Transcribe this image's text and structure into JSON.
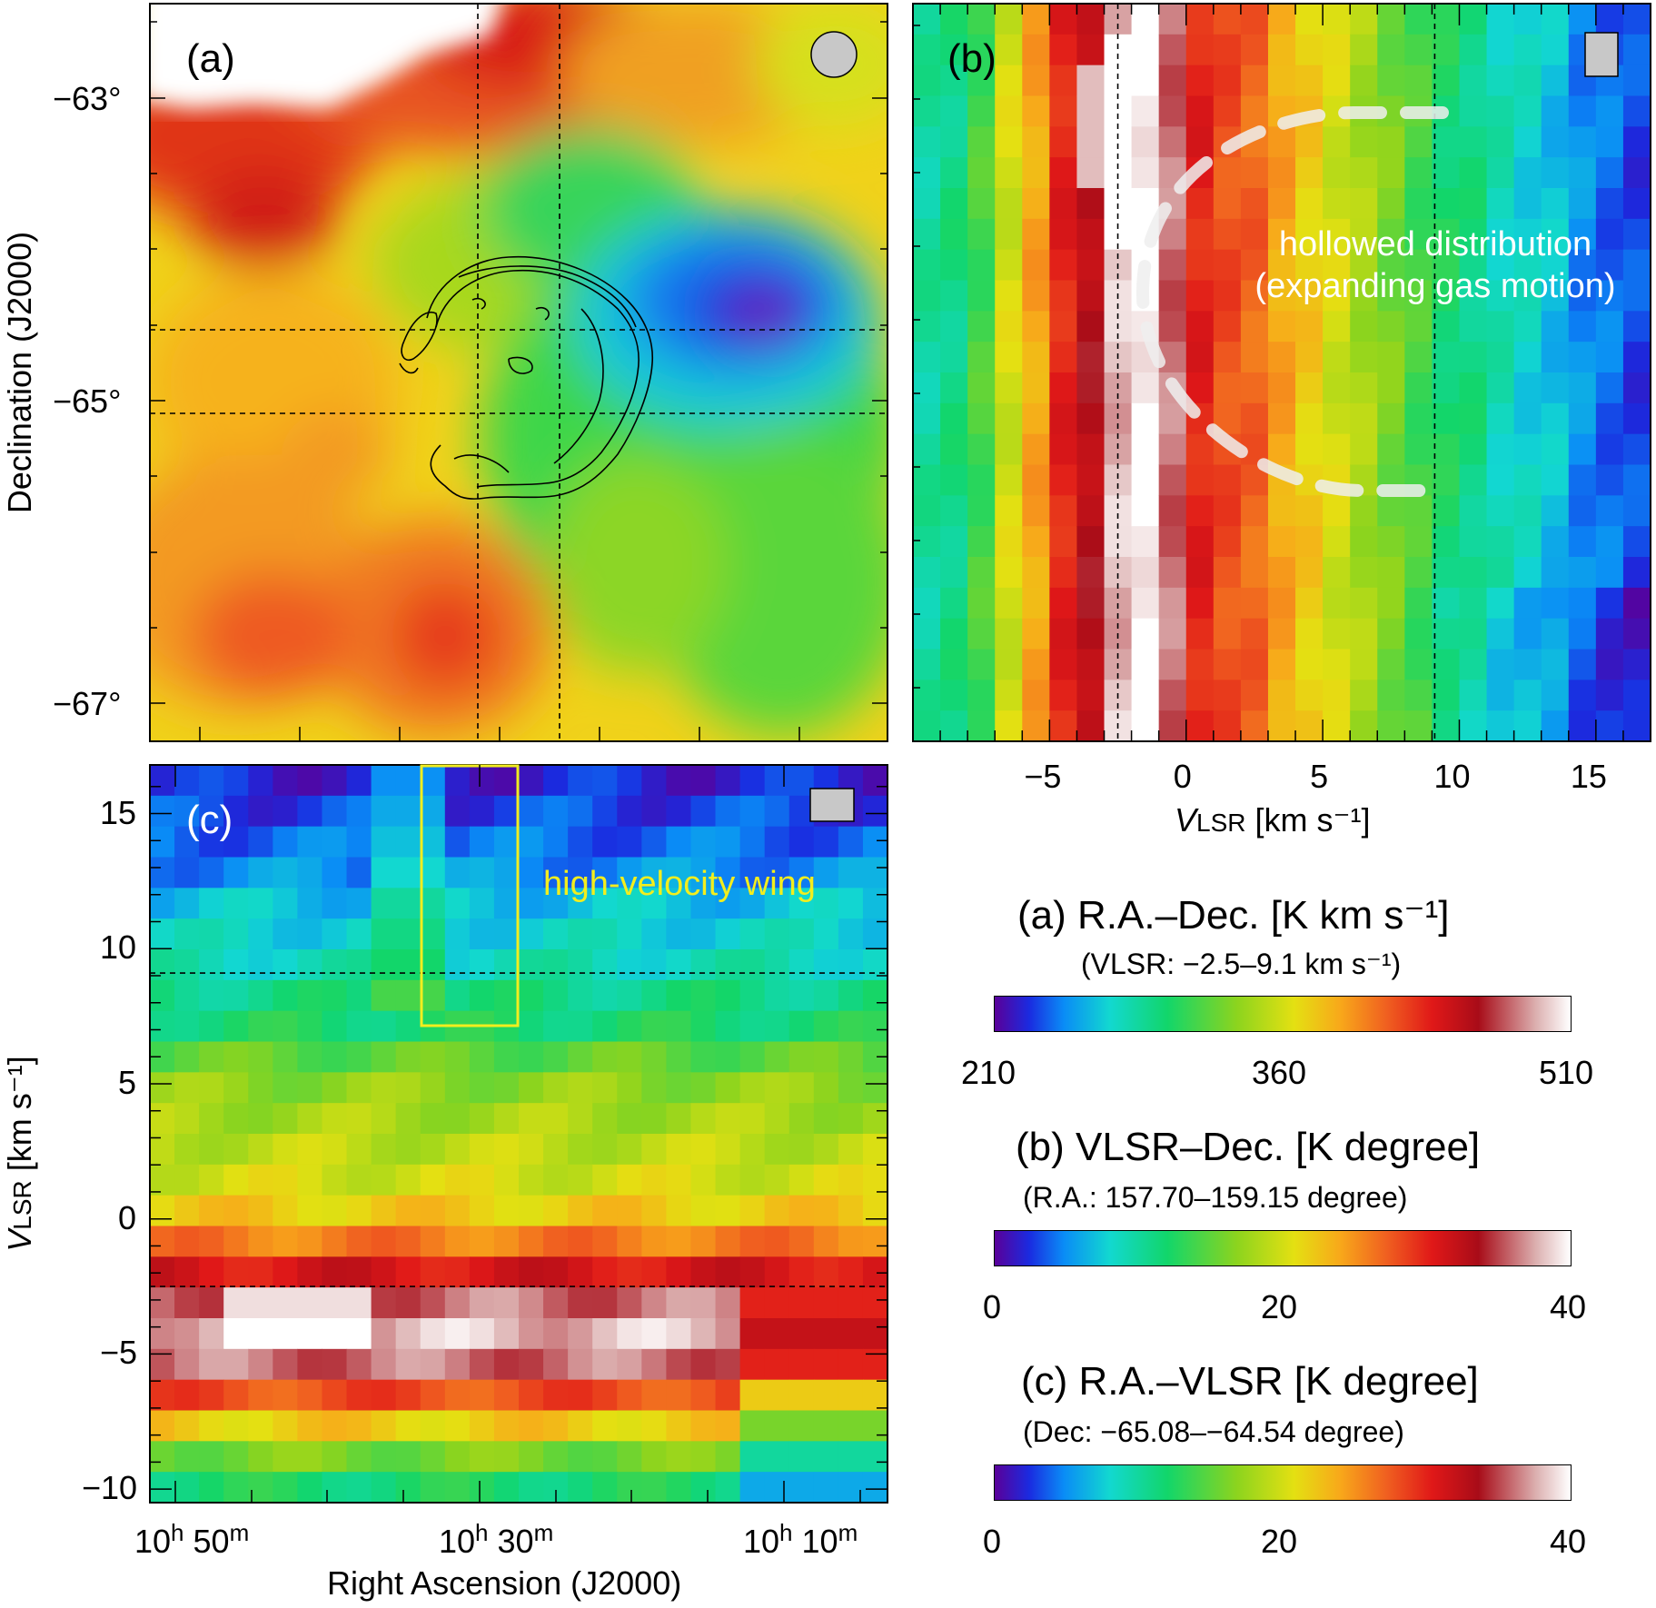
{
  "panels": {
    "a": {
      "label": "(a)"
    },
    "b": {
      "label": "(b)",
      "annotation_line1": "hollowed distribution",
      "annotation_line2": "(expanding gas motion)"
    },
    "c": {
      "label": "(c)",
      "annotation": "high-velocity wing"
    }
  },
  "axes": {
    "a_y_ticks": [
      "−63°",
      "−65°",
      "−67°"
    ],
    "a_y_title": "Declination (J2000)",
    "b_x_ticks": [
      "−5",
      "0",
      "5",
      "10",
      "15"
    ],
    "b_x_title_main": "V",
    "b_x_title_sub": "LSR",
    "b_x_title_rest": " [km s⁻¹]",
    "c_y_ticks": [
      "15",
      "10",
      "5",
      "0",
      "−5",
      "−10"
    ],
    "c_y_title_main": "V",
    "c_y_title_sub": "LSR",
    "c_y_title_rest": " [km s⁻¹]",
    "c_x_ticks": [
      {
        "h": "10",
        "m": "50"
      },
      {
        "h": "10",
        "m": "30"
      },
      {
        "h": "10",
        "m": "10"
      }
    ],
    "c_x_title": "Right Ascension (J2000)"
  },
  "colorbars": [
    {
      "title": "(a) R.A.–Dec. [K km s⁻¹]",
      "subtitle": "(VLSR: −2.5–9.1 km s⁻¹)",
      "ticks": [
        "210",
        "360",
        "510"
      ]
    },
    {
      "title": "(b) VLSR–Dec. [K degree]",
      "subtitle": "(R.A.: 157.70–159.15 degree)",
      "ticks": [
        "0",
        "20",
        "40"
      ]
    },
    {
      "title": "(c) R.A.–VLSR [K degree]",
      "subtitle": "(Dec: −65.08–−64.54 degree)",
      "ticks": [
        "0",
        "20",
        "40"
      ]
    }
  ],
  "colors": {
    "colormap": [
      "#5a0099",
      "#1a2be0",
      "#0a8cf6",
      "#12d8d0",
      "#12d66a",
      "#8cd41e",
      "#e4e012",
      "#f8a81a",
      "#f06020",
      "#e01818",
      "#a80c18",
      "#dcb0b0",
      "#ffffff"
    ],
    "annotation_white": "#ffffff",
    "annotation_yellow": "#f2ee1e"
  },
  "chart_data": [
    {
      "type": "heatmap",
      "panel": "a",
      "xlabel": "",
      "ylabel": "Declination (J2000)",
      "y_ticks_deg": [
        -63,
        -65,
        -67
      ],
      "ylim_deg": [
        -67.3,
        -62.5
      ],
      "colorbar_range": [
        210,
        510
      ],
      "colorbar_units": "K km s⁻¹",
      "integration_range_kms": [
        -2.5,
        9.1
      ],
      "features": {
        "contours": "shell-shaped contour",
        "beam": "circle",
        "dashed_lines": "two vertical, two horizontal"
      }
    },
    {
      "type": "heatmap",
      "panel": "b",
      "xlabel": "VLSR [km s⁻¹]",
      "x_ticks": [
        -5,
        0,
        5,
        10,
        15
      ],
      "xlim": [
        -10,
        17
      ],
      "dashed_vlines_kms": [
        -2.5,
        9.1
      ],
      "colorbar_range": [
        0,
        40
      ],
      "colorbar_units": "K degree",
      "ra_range_deg": [
        157.7,
        159.15
      ],
      "column_values": [
        10,
        11,
        14,
        20,
        24,
        30,
        33,
        38,
        40,
        36,
        30,
        28,
        27,
        24,
        22,
        20,
        18,
        16,
        14,
        12,
        11,
        9,
        8,
        7,
        5,
        4,
        3
      ]
    },
    {
      "type": "heatmap",
      "panel": "c",
      "xlabel": "Right Ascension (J2000)",
      "ylabel": "VLSR [km s⁻¹]",
      "y_ticks": [
        15,
        10,
        5,
        0,
        -5,
        -10
      ],
      "ylim": [
        -10.5,
        16.8
      ],
      "dashed_hlines_kms": [
        9.1,
        -2.5
      ],
      "colorbar_range": [
        0,
        40
      ],
      "colorbar_units": "K degree",
      "dec_range_deg": [
        -65.08,
        -64.54
      ],
      "row_values_top_to_bottom": [
        2,
        3,
        4,
        5,
        7,
        8,
        9,
        11,
        12,
        15,
        17,
        18,
        19,
        20,
        22,
        26,
        31,
        36,
        38,
        36,
        28,
        22,
        16,
        12
      ]
    }
  ]
}
